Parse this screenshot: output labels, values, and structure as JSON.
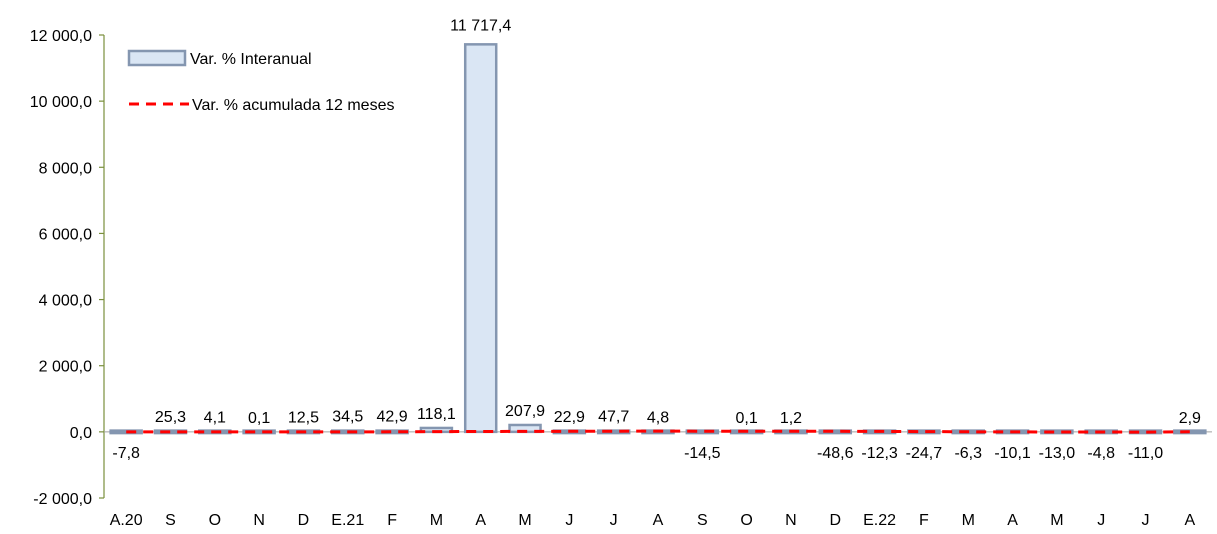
{
  "chart_data": {
    "type": "bar",
    "categories": [
      "A.20",
      "S",
      "O",
      "N",
      "D",
      "E.21",
      "F",
      "M",
      "A",
      "M",
      "J",
      "J",
      "A",
      "S",
      "O",
      "N",
      "D",
      "E.22",
      "F",
      "M",
      "A",
      "M",
      "J",
      "J",
      "A"
    ],
    "series": [
      {
        "name": "Var. % Interanual",
        "kind": "bar",
        "values": [
          -7.8,
          25.3,
          4.1,
          0.1,
          12.5,
          34.5,
          42.9,
          118.1,
          11717.4,
          207.9,
          22.9,
          47.7,
          4.8,
          -14.5,
          0.1,
          1.2,
          -48.6,
          -12.3,
          -24.7,
          -6.3,
          -10.1,
          -13.0,
          -4.8,
          -11.0,
          2.9
        ],
        "labels": [
          "-7,8",
          "25,3",
          "4,1",
          "0,1",
          "12,5",
          "34,5",
          "42,9",
          "118,1",
          "11 717,4",
          "207,9",
          "22,9",
          "47,7",
          "4,8",
          "-14,5",
          "0,1",
          "1,2",
          "-48,6",
          "-12,3",
          "-24,7",
          "-6,3",
          "-10,1",
          "-13,0",
          "-4,8",
          "-11,0",
          "2,9"
        ],
        "fill": "#dae6f4",
        "stroke": "#8496b0"
      },
      {
        "name": "Var. % acumulada  12 meses",
        "kind": "line",
        "values": [
          -2,
          -1,
          -1,
          -1,
          -1,
          0,
          2,
          8,
          10,
          15,
          18,
          20,
          22,
          20,
          20,
          18,
          16,
          14,
          8,
          2,
          -2,
          -3,
          -5,
          -6,
          2
        ],
        "color": "#ff0000"
      }
    ],
    "ylim": [
      -2000,
      12000
    ],
    "yticks": [
      -2000,
      0,
      2000,
      4000,
      6000,
      8000,
      10000,
      12000
    ],
    "ytick_labels": [
      "-2 000,0",
      "0,0",
      "2 000,0",
      "4 000,0",
      "6 000,0",
      "8 000,0",
      "10 000,0",
      "12 000,0"
    ],
    "legend": "top-left",
    "grid": false,
    "axis_color": "#7a8f3c",
    "title": "",
    "xlabel": "",
    "ylabel": ""
  }
}
